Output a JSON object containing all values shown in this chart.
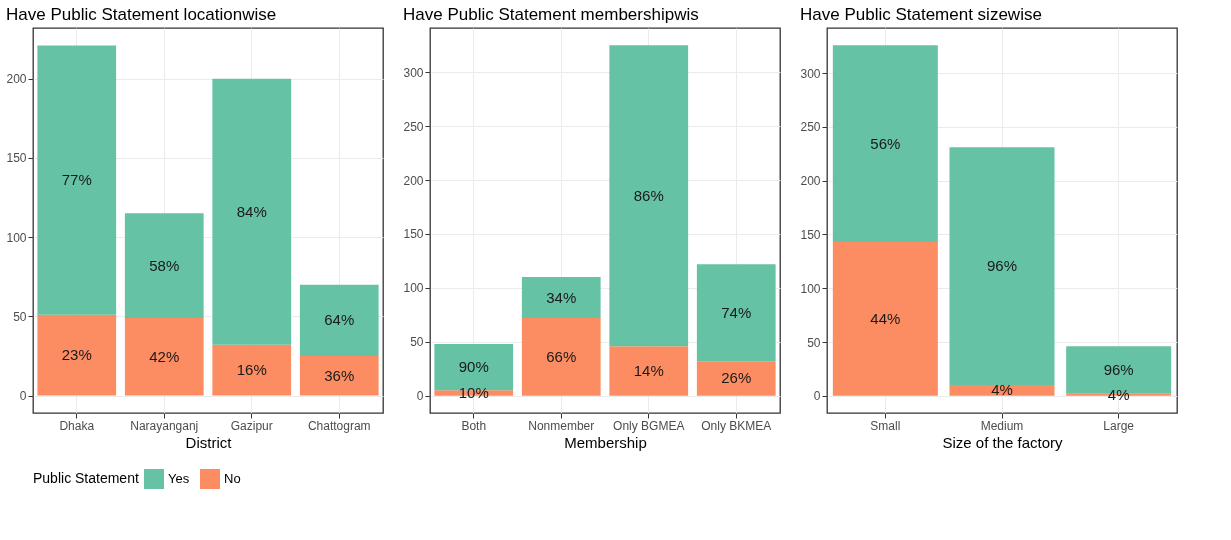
{
  "chart_data": [
    {
      "type": "bar",
      "title": "Have Public Statement locationwise",
      "xlabel": "District",
      "categories": [
        "Dhaka",
        "Narayanganj",
        "Gazipur",
        "Chattogram"
      ],
      "stacked": true,
      "ylim": [
        -11,
        232
      ],
      "yticks": [
        0,
        50,
        100,
        150,
        200
      ],
      "grid": true,
      "legend": "bottom",
      "legend_title": "Public Statement",
      "series": [
        {
          "name": "No",
          "color": "#fc8d62",
          "values": [
            51,
            49,
            32,
            25
          ]
        },
        {
          "name": "Yes",
          "color": "#66c2a5",
          "values": [
            170,
            66,
            168,
            45
          ]
        }
      ],
      "annotations": [
        "23%",
        "42%",
        "16%",
        "36%",
        "77%",
        "58%",
        "84%",
        "64%"
      ]
    },
    {
      "type": "bar",
      "title": "Have Public Statement membershipwis",
      "xlabel": "Membership",
      "categories": [
        "Both",
        "Nonmember",
        "Only BGMEA",
        "Only BKMEA"
      ],
      "stacked": true,
      "ylim": [
        -16,
        341
      ],
      "yticks": [
        0,
        50,
        100,
        150,
        200,
        250,
        300
      ],
      "grid": true,
      "series": [
        {
          "name": "No",
          "color": "#fc8d62",
          "values": [
            5,
            72,
            46,
            32
          ]
        },
        {
          "name": "Yes",
          "color": "#66c2a5",
          "values": [
            43,
            38,
            279,
            90
          ]
        }
      ],
      "annotations": [
        "10%",
        "66%",
        "14%",
        "26%",
        "90%",
        "34%",
        "86%",
        "74%"
      ]
    },
    {
      "type": "bar",
      "title": "Have Public Statement sizewise",
      "xlabel": "Size of the factory",
      "categories": [
        "Small",
        "Medium",
        "Large"
      ],
      "stacked": true,
      "ylim": [
        -16,
        342
      ],
      "yticks": [
        0,
        50,
        100,
        150,
        200,
        250,
        300
      ],
      "grid": true,
      "series": [
        {
          "name": "No",
          "color": "#fc8d62",
          "values": [
            143,
            10,
            2
          ]
        },
        {
          "name": "Yes",
          "color": "#66c2a5",
          "values": [
            183,
            221,
            44
          ]
        }
      ],
      "annotations": [
        "44%",
        "4%",
        "4%",
        "56%",
        "96%",
        "96%"
      ]
    }
  ]
}
